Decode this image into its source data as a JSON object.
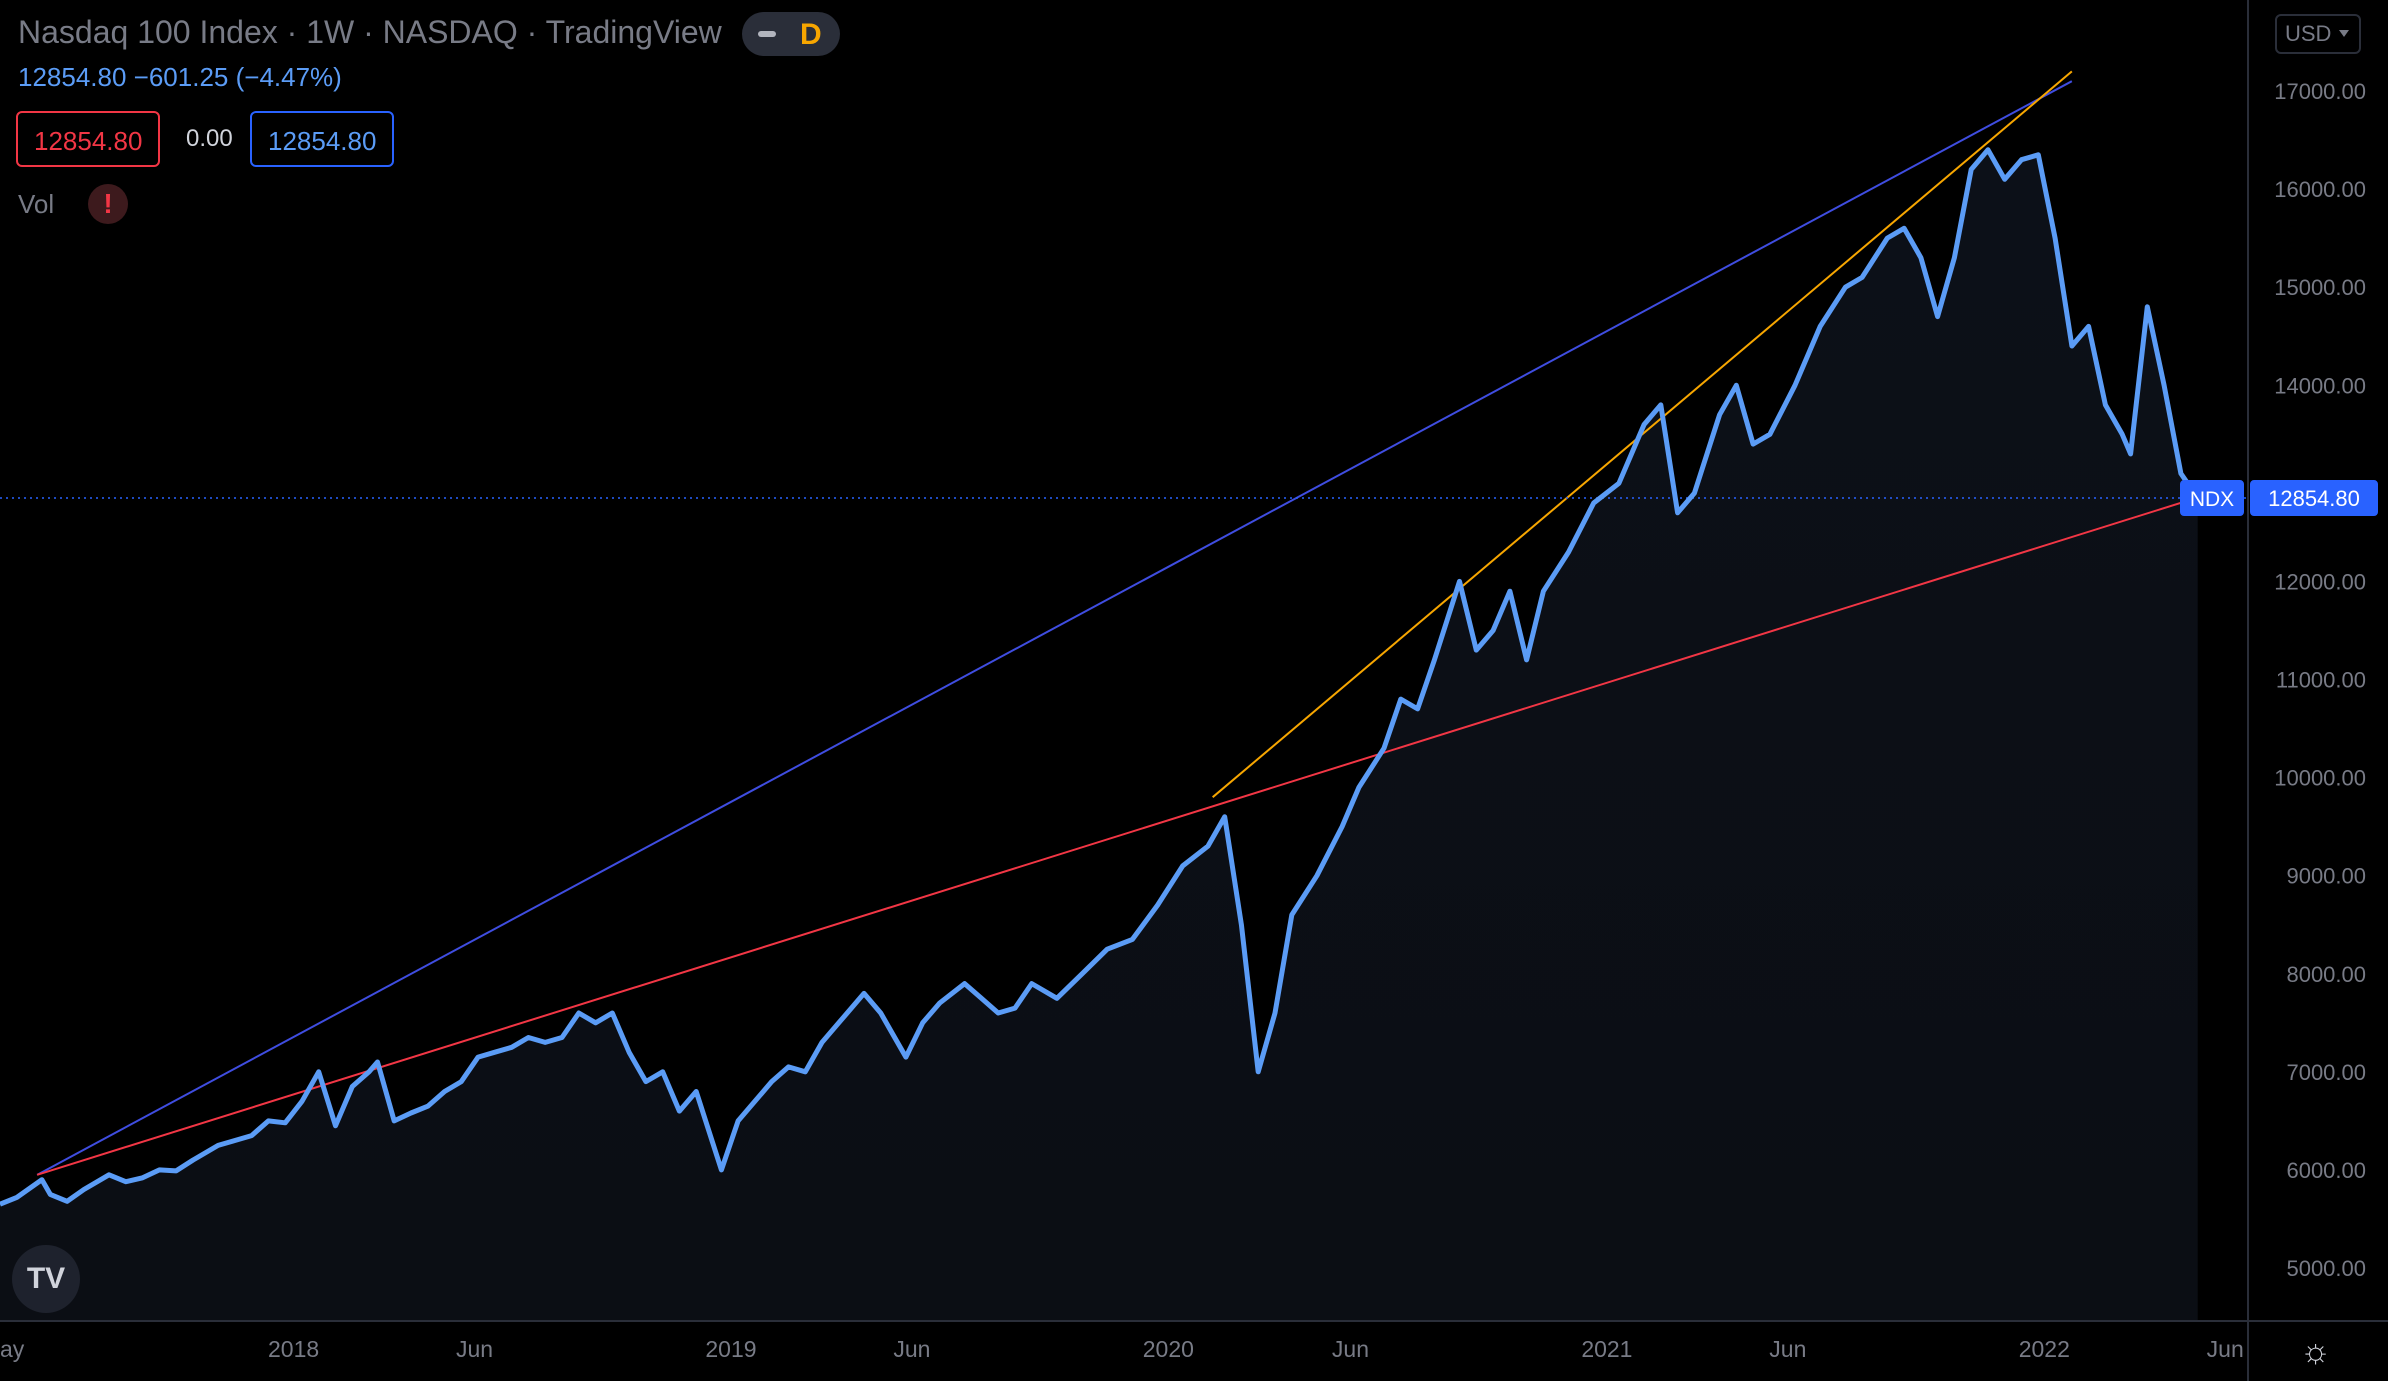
{
  "header": {
    "title": "Nasdaq 100 Index · 1W · NASDAQ · TradingView",
    "badge_letter": "D",
    "quote": "12854.80  −601.25 (−4.47%)",
    "bid": "12854.80",
    "spread": "0.00",
    "ask": "12854.80",
    "vol_label": "Vol",
    "vol_warning": "!"
  },
  "currency": "USD",
  "logo_text": "TV",
  "icons": {
    "logo": "tradingview-logo-icon",
    "warning": "warning-icon",
    "settings": "gear-icon",
    "mode": "minus-icon"
  },
  "colors": {
    "price": "#5b9cf6",
    "upper_trend": "#3f4de0",
    "lower_trend": "#f23645",
    "steep_trend": "#f7a600",
    "last_label": "#2962ff"
  },
  "chart_data": {
    "type": "line",
    "symbol": "NDX",
    "last_value": "12854.80",
    "ylim": [
      4500,
      17700
    ],
    "yticks": [
      5000,
      6000,
      7000,
      8000,
      9000,
      10000,
      11000,
      12000,
      13000,
      14000,
      15000,
      16000,
      17000
    ],
    "ytick_labels": [
      "5000.00",
      "6000.00",
      "7000.00",
      "8000.00",
      "9000.00",
      "10000.00",
      "11000.00",
      "12000.00",
      "13000.00",
      "14000.00",
      "15000.00",
      "16000.00",
      "17000.00"
    ],
    "xlim": [
      "2017-05-01",
      "2022-06-20"
    ],
    "xticks": [
      {
        "label": "ay",
        "date": "2017-05-01"
      },
      {
        "label": "2018",
        "date": "2018-01-01"
      },
      {
        "label": "Jun",
        "date": "2018-06-01"
      },
      {
        "label": "2019",
        "date": "2019-01-01"
      },
      {
        "label": "Jun",
        "date": "2019-06-01"
      },
      {
        "label": "2020",
        "date": "2020-01-01"
      },
      {
        "label": "Jun",
        "date": "2020-06-01"
      },
      {
        "label": "2021",
        "date": "2021-01-01"
      },
      {
        "label": "Jun",
        "date": "2021-06-01"
      },
      {
        "label": "2022",
        "date": "2022-01-01"
      },
      {
        "label": "Jun",
        "date": "2022-06-01"
      }
    ],
    "series": [
      {
        "points": [
          [
            "2017-05-01",
            5650
          ],
          [
            "2017-05-15",
            5720
          ],
          [
            "2017-06-05",
            5900
          ],
          [
            "2017-06-12",
            5750
          ],
          [
            "2017-06-26",
            5680
          ],
          [
            "2017-07-10",
            5800
          ],
          [
            "2017-07-31",
            5950
          ],
          [
            "2017-08-14",
            5880
          ],
          [
            "2017-08-28",
            5920
          ],
          [
            "2017-09-11",
            6000
          ],
          [
            "2017-09-25",
            5990
          ],
          [
            "2017-10-09",
            6100
          ],
          [
            "2017-10-30",
            6250
          ],
          [
            "2017-11-13",
            6300
          ],
          [
            "2017-11-27",
            6350
          ],
          [
            "2017-12-11",
            6500
          ],
          [
            "2017-12-25",
            6480
          ],
          [
            "2018-01-08",
            6700
          ],
          [
            "2018-01-22",
            7000
          ],
          [
            "2018-02-05",
            6450
          ],
          [
            "2018-02-19",
            6850
          ],
          [
            "2018-03-05",
            7000
          ],
          [
            "2018-03-12",
            7100
          ],
          [
            "2018-03-26",
            6500
          ],
          [
            "2018-04-09",
            6580
          ],
          [
            "2018-04-23",
            6650
          ],
          [
            "2018-05-07",
            6800
          ],
          [
            "2018-05-21",
            6900
          ],
          [
            "2018-06-04",
            7150
          ],
          [
            "2018-06-18",
            7200
          ],
          [
            "2018-07-02",
            7250
          ],
          [
            "2018-07-16",
            7350
          ],
          [
            "2018-07-30",
            7300
          ],
          [
            "2018-08-13",
            7350
          ],
          [
            "2018-08-27",
            7600
          ],
          [
            "2018-09-10",
            7500
          ],
          [
            "2018-09-24",
            7600
          ],
          [
            "2018-10-08",
            7200
          ],
          [
            "2018-10-22",
            6900
          ],
          [
            "2018-11-05",
            7000
          ],
          [
            "2018-11-19",
            6600
          ],
          [
            "2018-12-03",
            6800
          ],
          [
            "2018-12-24",
            6000
          ],
          [
            "2019-01-07",
            6500
          ],
          [
            "2019-01-21",
            6700
          ],
          [
            "2019-02-04",
            6900
          ],
          [
            "2019-02-18",
            7050
          ],
          [
            "2019-03-04",
            7000
          ],
          [
            "2019-03-18",
            7300
          ],
          [
            "2019-04-01",
            7500
          ],
          [
            "2019-04-22",
            7800
          ],
          [
            "2019-05-06",
            7600
          ],
          [
            "2019-05-27",
            7150
          ],
          [
            "2019-06-10",
            7500
          ],
          [
            "2019-06-24",
            7700
          ],
          [
            "2019-07-15",
            7900
          ],
          [
            "2019-07-29",
            7750
          ],
          [
            "2019-08-12",
            7600
          ],
          [
            "2019-08-26",
            7650
          ],
          [
            "2019-09-09",
            7900
          ],
          [
            "2019-09-30",
            7750
          ],
          [
            "2019-10-21",
            8000
          ],
          [
            "2019-11-11",
            8250
          ],
          [
            "2019-12-02",
            8350
          ],
          [
            "2019-12-23",
            8700
          ],
          [
            "2020-01-13",
            9100
          ],
          [
            "2020-02-03",
            9300
          ],
          [
            "2020-02-17",
            9600
          ],
          [
            "2020-03-02",
            8500
          ],
          [
            "2020-03-16",
            7000
          ],
          [
            "2020-03-30",
            7600
          ],
          [
            "2020-04-13",
            8600
          ],
          [
            "2020-05-04",
            9000
          ],
          [
            "2020-05-25",
            9500
          ],
          [
            "2020-06-08",
            9900
          ],
          [
            "2020-06-29",
            10300
          ],
          [
            "2020-07-13",
            10800
          ],
          [
            "2020-07-27",
            10700
          ],
          [
            "2020-08-10",
            11200
          ],
          [
            "2020-08-31",
            12000
          ],
          [
            "2020-09-14",
            11300
          ],
          [
            "2020-09-28",
            11500
          ],
          [
            "2020-10-12",
            11900
          ],
          [
            "2020-10-26",
            11200
          ],
          [
            "2020-11-09",
            11900
          ],
          [
            "2020-11-30",
            12300
          ],
          [
            "2020-12-21",
            12800
          ],
          [
            "2021-01-11",
            13000
          ],
          [
            "2021-02-01",
            13600
          ],
          [
            "2021-02-15",
            13800
          ],
          [
            "2021-03-01",
            12700
          ],
          [
            "2021-03-15",
            12900
          ],
          [
            "2021-04-05",
            13700
          ],
          [
            "2021-04-19",
            14000
          ],
          [
            "2021-05-03",
            13400
          ],
          [
            "2021-05-17",
            13500
          ],
          [
            "2021-06-07",
            14000
          ],
          [
            "2021-06-28",
            14600
          ],
          [
            "2021-07-19",
            15000
          ],
          [
            "2021-08-02",
            15100
          ],
          [
            "2021-08-23",
            15500
          ],
          [
            "2021-09-06",
            15600
          ],
          [
            "2021-09-20",
            15300
          ],
          [
            "2021-10-04",
            14700
          ],
          [
            "2021-10-18",
            15300
          ],
          [
            "2021-11-01",
            16200
          ],
          [
            "2021-11-15",
            16400
          ],
          [
            "2021-11-29",
            16100
          ],
          [
            "2021-12-13",
            16300
          ],
          [
            "2021-12-27",
            16350
          ],
          [
            "2022-01-10",
            15500
          ],
          [
            "2022-01-24",
            14400
          ],
          [
            "2022-02-07",
            14600
          ],
          [
            "2022-02-21",
            13800
          ],
          [
            "2022-03-07",
            13500
          ],
          [
            "2022-03-14",
            13300
          ],
          [
            "2022-03-28",
            14800
          ],
          [
            "2022-04-11",
            14000
          ],
          [
            "2022-04-25",
            13100
          ],
          [
            "2022-05-09",
            12850
          ]
        ]
      }
    ],
    "trendlines": [
      {
        "color": "upper_trend",
        "from": [
          "2017-06-01",
          5950
        ],
        "to": [
          "2022-01-24",
          17100
        ]
      },
      {
        "color": "lower_trend",
        "from": [
          "2017-06-01",
          5950
        ],
        "to": [
          "2022-05-09",
          12854.8
        ]
      },
      {
        "color": "steep_trend",
        "from": [
          "2020-02-07",
          9800
        ],
        "to": [
          "2022-01-24",
          17200
        ]
      }
    ]
  }
}
